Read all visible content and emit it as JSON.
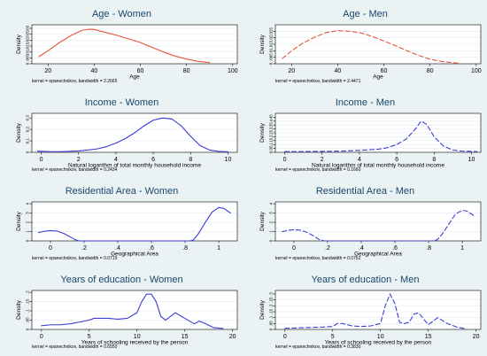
{
  "figure": {
    "background": "#eaf2f3",
    "plot_background": "#ffffff",
    "title_color": "#1a476f"
  },
  "chart_data": [
    {
      "type": "line",
      "title": "Age - Women",
      "xlabel": "Age",
      "ylabel": "Density",
      "xlim": [
        13,
        102
      ],
      "xticks": [
        20,
        40,
        60,
        80,
        100
      ],
      "ylim": [
        0,
        0.033
      ],
      "yticks": [
        0,
        0.005,
        0.01,
        0.015,
        0.02,
        0.025,
        0.03
      ],
      "ytick_labels": [
        "0",
        ".005",
        ".01",
        ".015",
        ".02",
        ".025",
        ".03"
      ],
      "note": "kernel = epanechnikov, bandwidth = 2.2665",
      "series": [
        {
          "color": "#e8533b",
          "style": "solid",
          "x": [
            16,
            20,
            25,
            30,
            35,
            38,
            40,
            45,
            50,
            55,
            60,
            65,
            70,
            75,
            80,
            85,
            90
          ],
          "y": [
            0.006,
            0.011,
            0.018,
            0.024,
            0.0285,
            0.0292,
            0.029,
            0.0265,
            0.024,
            0.021,
            0.018,
            0.014,
            0.01,
            0.0065,
            0.004,
            0.002,
            0.001
          ]
        }
      ]
    },
    {
      "type": "line",
      "title": "Age - Men",
      "xlabel": "Age",
      "ylabel": "Density",
      "xlim": [
        13,
        102
      ],
      "xticks": [
        20,
        40,
        60,
        80,
        100
      ],
      "ylim": [
        0,
        0.03
      ],
      "yticks": [
        0,
        0.005,
        0.01,
        0.015,
        0.02,
        0.025
      ],
      "ytick_labels": [
        "0",
        ".005",
        ".01",
        ".015",
        ".02",
        ".025"
      ],
      "note": "kernel = epanechnikov, bandwidth = 2.4471",
      "series": [
        {
          "color": "#e8533b",
          "style": "dashed",
          "x": [
            16,
            20,
            25,
            30,
            35,
            40,
            45,
            50,
            55,
            60,
            65,
            70,
            75,
            80,
            85,
            90,
            93
          ],
          "y": [
            0.004,
            0.01,
            0.016,
            0.0205,
            0.024,
            0.0255,
            0.025,
            0.0238,
            0.021,
            0.0175,
            0.014,
            0.01,
            0.0065,
            0.0035,
            0.0018,
            0.0008,
            0.0003
          ]
        }
      ]
    },
    {
      "type": "line",
      "title": "Income - Women",
      "xlabel": "Natural logarithm of total monthly household income",
      "ylabel": "Density",
      "xlim": [
        -0.5,
        10.5
      ],
      "xticks": [
        0,
        2,
        4,
        6,
        8,
        10
      ],
      "ylim": [
        0,
        0.34
      ],
      "yticks": [
        0,
        0.1,
        0.2,
        0.3
      ],
      "ytick_labels": [
        "0",
        "0.1",
        "0.2",
        "0.3"
      ],
      "note": "kernel = epanechnikov, bandwidth = 0.2434",
      "series": [
        {
          "color": "#3b3bd6",
          "style": "solid",
          "x": [
            -0.2,
            0.5,
            1,
            1.5,
            2,
            2.5,
            3,
            3.5,
            4,
            4.5,
            5,
            5.5,
            6,
            6.5,
            7,
            7.5,
            8,
            8.5,
            9,
            9.5,
            10
          ],
          "y": [
            0.01,
            0.005,
            0.005,
            0.008,
            0.012,
            0.02,
            0.03,
            0.05,
            0.08,
            0.12,
            0.17,
            0.23,
            0.28,
            0.3,
            0.29,
            0.23,
            0.14,
            0.06,
            0.02,
            0.008,
            0.004
          ]
        }
      ]
    },
    {
      "type": "line",
      "title": "Income - Men",
      "xlabel": "Natural logarithm of total monthly household income",
      "ylabel": "Density",
      "xlim": [
        -0.5,
        10.5
      ],
      "xticks": [
        0,
        2,
        4,
        6,
        8,
        10
      ],
      "ylim": [
        0,
        0.5
      ],
      "yticks": [
        0,
        0.05,
        0.1,
        0.15,
        0.2,
        0.25,
        0.3,
        0.35,
        0.4,
        0.45
      ],
      "ytick_labels": [
        "0",
        ".05",
        ".1",
        ".15",
        ".2",
        ".25",
        ".3",
        ".35",
        ".4",
        ".45"
      ],
      "note": "kernel = epanechnikov, bandwidth = 0.1660",
      "series": [
        {
          "color": "#3b3bd6",
          "style": "dashed",
          "x": [
            0,
            1,
            2,
            3,
            4,
            5,
            5.5,
            6,
            6.5,
            7,
            7.3,
            7.6,
            8,
            8.5,
            9,
            9.5,
            10.3
          ],
          "y": [
            0.01,
            0.01,
            0.012,
            0.015,
            0.025,
            0.04,
            0.06,
            0.1,
            0.17,
            0.3,
            0.4,
            0.36,
            0.2,
            0.08,
            0.03,
            0.015,
            0.01
          ]
        }
      ]
    },
    {
      "type": "line",
      "title": "Residential Area - Women",
      "xlabel": "Geographical Area",
      "ylabel": "Density",
      "xlim": [
        -0.11,
        1.11
      ],
      "xticks": [
        0,
        0.2,
        0.4,
        0.6,
        0.8,
        1
      ],
      "xtick_labels": [
        "0",
        ".2",
        ".4",
        ".6",
        ".8",
        "1"
      ],
      "ylim": [
        0,
        4.2
      ],
      "yticks": [
        0,
        1,
        2,
        3,
        4
      ],
      "ytick_labels": [
        "0",
        "1",
        "2",
        "3",
        "4"
      ],
      "note": "kernel = epanechnikov, bandwidth = 0.0715",
      "series": [
        {
          "color": "#3b3bd6",
          "style": "solid",
          "x": [
            -0.07,
            -0.03,
            0,
            0.04,
            0.08,
            0.12,
            0.15,
            0.17,
            0.3,
            0.5,
            0.7,
            0.83,
            0.85,
            0.88,
            0.92,
            0.96,
            1.0,
            1.03,
            1.07
          ],
          "y": [
            0.9,
            1.05,
            1.1,
            1.05,
            0.8,
            0.4,
            0.1,
            0.0,
            0.0,
            0.0,
            0.0,
            0.0,
            0.1,
            0.8,
            2.0,
            3.1,
            3.6,
            3.5,
            3.0
          ]
        }
      ]
    },
    {
      "type": "line",
      "title": "Residential Area - Men",
      "xlabel": "Geographical Area",
      "ylabel": "Density",
      "xlim": [
        -0.11,
        1.11
      ],
      "xticks": [
        0,
        0.2,
        0.4,
        0.6,
        0.8,
        1
      ],
      "xtick_labels": [
        "0",
        ".2",
        ".4",
        ".6",
        ".8",
        "1"
      ],
      "ylim": [
        0,
        4.2
      ],
      "yticks": [
        0,
        1,
        2,
        3,
        4
      ],
      "ytick_labels": [
        "0",
        "1",
        "2",
        "3",
        "4"
      ],
      "note": "kernel = epanechnikov, bandwidth = 0.0752",
      "series": [
        {
          "color": "#3b3bd6",
          "style": "dashed",
          "x": [
            -0.07,
            -0.03,
            0,
            0.04,
            0.08,
            0.12,
            0.15,
            0.18,
            0.3,
            0.5,
            0.7,
            0.82,
            0.85,
            0.88,
            0.92,
            0.96,
            1.0,
            1.03,
            1.07
          ],
          "y": [
            1.0,
            1.15,
            1.2,
            1.15,
            0.9,
            0.5,
            0.15,
            0.0,
            0.0,
            0.0,
            0.0,
            0.0,
            0.1,
            0.7,
            1.8,
            2.9,
            3.3,
            3.2,
            2.7
          ]
        }
      ]
    },
    {
      "type": "line",
      "title": "Years of education - Women",
      "xlabel": "Years of schooling received by the person",
      "ylabel": "Density",
      "xlim": [
        -1,
        20.5
      ],
      "xticks": [
        0,
        5,
        10,
        15,
        20
      ],
      "ylim": [
        0,
        0.21
      ],
      "yticks": [
        0,
        0.05,
        0.1,
        0.15,
        0.2
      ],
      "ytick_labels": [
        "0",
        ".05",
        ".1",
        ".15",
        ".2"
      ],
      "note": "kernel = epanechnikov, bandwidth = 0.6550",
      "series": [
        {
          "color": "#3b3bd6",
          "style": "solid",
          "x": [
            0,
            1,
            2,
            3,
            4,
            5,
            5.5,
            6,
            7,
            8,
            9,
            10,
            10.5,
            11,
            11.5,
            12,
            12.5,
            13,
            13.5,
            14,
            15,
            16,
            16.5,
            17,
            18,
            19
          ],
          "y": [
            0.02,
            0.025,
            0.025,
            0.03,
            0.04,
            0.05,
            0.06,
            0.06,
            0.06,
            0.055,
            0.06,
            0.09,
            0.15,
            0.19,
            0.19,
            0.15,
            0.07,
            0.05,
            0.07,
            0.09,
            0.06,
            0.03,
            0.045,
            0.035,
            0.01,
            0.005
          ]
        }
      ]
    },
    {
      "type": "line",
      "title": "Years of education - Men",
      "xlabel": "Years of schooling received by the person",
      "ylabel": "Density",
      "xlim": [
        -1,
        20.5
      ],
      "xticks": [
        0,
        5,
        10,
        15,
        20
      ],
      "ylim": [
        0,
        0.33
      ],
      "yticks": [
        0,
        0.05,
        0.1,
        0.15,
        0.2,
        0.25,
        0.3
      ],
      "ytick_labels": [
        "0",
        ".05",
        ".1",
        ".15",
        ".2",
        ".25",
        ".3"
      ],
      "note": "kernel = epanechnikov, bandwidth = 0.3830",
      "series": [
        {
          "color": "#3b3bd6",
          "style": "dashed",
          "x": [
            0,
            2,
            4,
            5,
            5.5,
            6,
            7,
            8,
            9,
            10,
            10.5,
            11,
            11.5,
            12,
            12.5,
            13,
            13.5,
            14,
            15,
            15.5,
            16,
            17,
            18,
            19
          ],
          "y": [
            0.01,
            0.015,
            0.02,
            0.025,
            0.05,
            0.05,
            0.03,
            0.025,
            0.03,
            0.05,
            0.2,
            0.3,
            0.22,
            0.06,
            0.05,
            0.06,
            0.13,
            0.14,
            0.04,
            0.07,
            0.1,
            0.05,
            0.02,
            0.005
          ]
        }
      ]
    }
  ]
}
